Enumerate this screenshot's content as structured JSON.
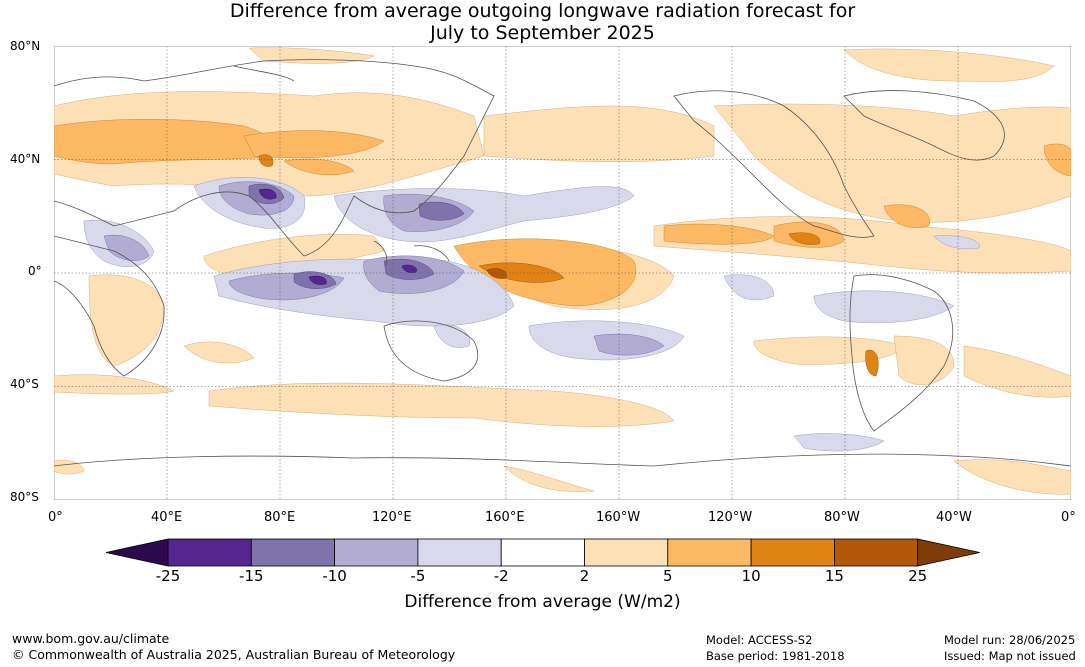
{
  "title": {
    "line1": "Difference from average outgoing longwave radiation forecast for",
    "line2": "July to September 2025"
  },
  "latitude_labels": [
    "80°N",
    "40°N",
    "0°",
    "40°S",
    "80°S"
  ],
  "longitude_labels": [
    "0°",
    "40°E",
    "80°E",
    "120°E",
    "160°E",
    "160°W",
    "120°W",
    "80°W",
    "40°W",
    "0°"
  ],
  "colorbar": {
    "ticks": [
      "-25",
      "-15",
      "-10",
      "-5",
      "-2",
      "2",
      "5",
      "10",
      "15",
      "25"
    ],
    "colors": [
      "#2d0a4f",
      "#54278f",
      "#8073ac",
      "#b2abd2",
      "#d8daeb",
      "#ffffff",
      "#fee0b6",
      "#fdb863",
      "#e08214",
      "#b35806",
      "#7f3b08"
    ],
    "label": "Difference from average (W/m2)"
  },
  "footer": {
    "url": "www.bom.gov.au/climate",
    "copyright": "© Commonwealth of Australia 2025, Australian Bureau of Meteorology",
    "model": "Model: ACCESS-S2",
    "base_period": "Base period: 1981-2018",
    "model_run": "Model run: 28/06/2025",
    "issued": "Issued: Map not issued"
  }
}
